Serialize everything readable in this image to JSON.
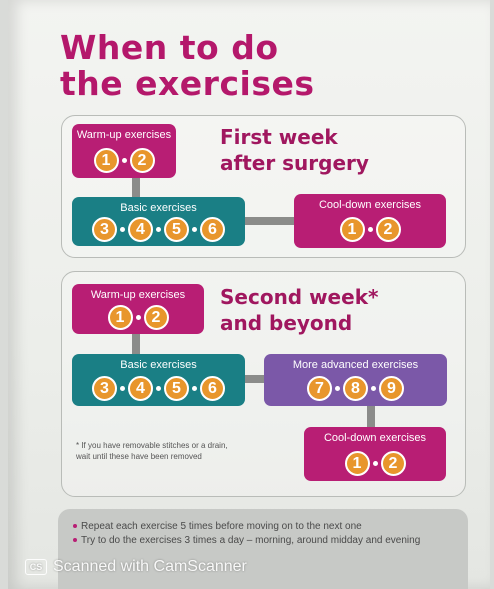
{
  "title": {
    "line1": "When to do",
    "line2": "the exercises"
  },
  "section1": {
    "heading_line1": "First week",
    "heading_line2": "after surgery",
    "warmup": {
      "label": "Warm-up exercises",
      "numbers": [
        "1",
        "2"
      ]
    },
    "basic": {
      "label": "Basic exercises",
      "numbers": [
        "3",
        "4",
        "5",
        "6"
      ]
    },
    "cooldown": {
      "label": "Cool-down exercises",
      "numbers": [
        "1",
        "2"
      ]
    }
  },
  "section2": {
    "heading_line1": "Second week*",
    "heading_line2": "and beyond",
    "warmup": {
      "label": "Warm-up exercises",
      "numbers": [
        "1",
        "2"
      ]
    },
    "basic": {
      "label": "Basic exercises",
      "numbers": [
        "3",
        "4",
        "5",
        "6"
      ]
    },
    "advanced": {
      "label": "More advanced exercises",
      "numbers": [
        "7",
        "8",
        "9"
      ]
    },
    "cooldown": {
      "label": "Cool-down exercises",
      "numbers": [
        "1",
        "2"
      ]
    },
    "footnote_line1": "* If you have removable stitches or a drain,",
    "footnote_line2": "wait until these have been removed"
  },
  "tips": [
    "Repeat each exercise 5 times before moving on to the next one",
    "Try to do the exercises 3 times a day – morning, around midday and evening"
  ],
  "watermark": {
    "logo": "CS",
    "text": "Scanned with CamScanner"
  },
  "colors": {
    "title": "#b4186b",
    "magenta_box": "#b81e74",
    "teal_box": "#1a7f85",
    "purple_box": "#7b58a8",
    "number_circle": "#e8962c",
    "tips_background": "#c7c9c6"
  }
}
